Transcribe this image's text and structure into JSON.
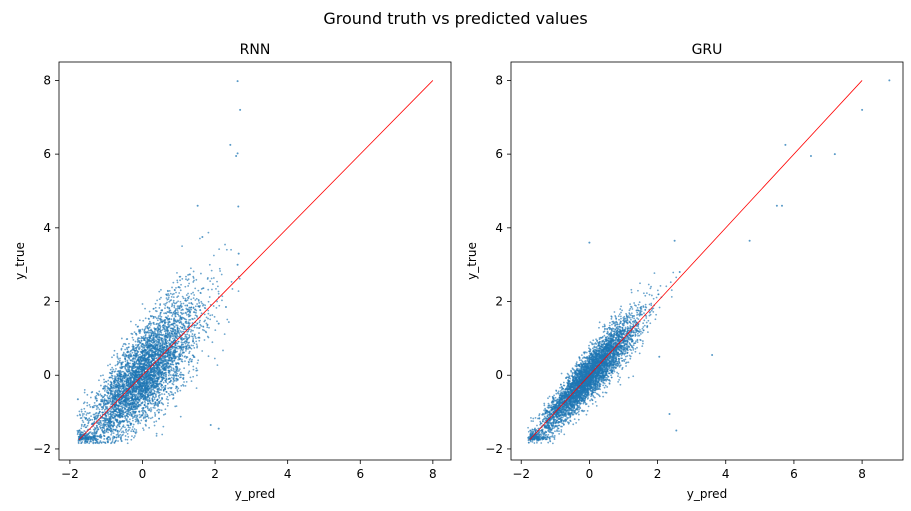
{
  "figure": {
    "suptitle": "Ground truth vs predicted values"
  },
  "colors": {
    "points": "#1f77b4",
    "reference_line": "#ff0000",
    "axes": "#000000",
    "background": "#ffffff"
  },
  "chart_data": [
    {
      "type": "scatter",
      "title": "RNN",
      "xlabel": "y_pred",
      "ylabel": "y_true",
      "xlim": [
        -2.3,
        8.5
      ],
      "ylim": [
        -2.3,
        8.5
      ],
      "x_ticks": [
        -2,
        0,
        2,
        4,
        6,
        8
      ],
      "y_ticks": [
        -2,
        0,
        2,
        4,
        6,
        8
      ],
      "grid": false,
      "reference_line": {
        "from": [
          -1.75,
          -1.75
        ],
        "to": [
          8.0,
          8.0
        ]
      },
      "cluster": {
        "point_count": 5000,
        "low_end": [
          -1.75,
          -1.75
        ],
        "center": [
          0.05,
          0.0
        ],
        "pred_sd": 0.75,
        "true_sd_at_center": 1.0
      },
      "outliers": [
        {
          "x": 2.62,
          "y": 7.98
        },
        {
          "x": 2.69,
          "y": 7.2
        },
        {
          "x": 2.42,
          "y": 6.25
        },
        {
          "x": 2.58,
          "y": 5.95
        },
        {
          "x": 2.62,
          "y": 6.02
        },
        {
          "x": 2.64,
          "y": 4.58
        },
        {
          "x": 1.52,
          "y": 4.6
        },
        {
          "x": 1.65,
          "y": 3.75
        },
        {
          "x": 2.65,
          "y": 3.3
        },
        {
          "x": 2.62,
          "y": 3.0
        },
        {
          "x": 2.1,
          "y": 1.4
        },
        {
          "x": 2.3,
          "y": 1.85
        },
        {
          "x": -1.78,
          "y": -0.65
        },
        {
          "x": 2.1,
          "y": -1.45
        },
        {
          "x": 1.88,
          "y": -1.35
        }
      ]
    },
    {
      "type": "scatter",
      "title": "GRU",
      "xlabel": "y_pred",
      "ylabel": "y_true",
      "xlim": [
        -2.3,
        9.2
      ],
      "ylim": [
        -2.3,
        8.5
      ],
      "x_ticks": [
        -2,
        0,
        2,
        4,
        6,
        8
      ],
      "y_ticks": [
        -2,
        0,
        2,
        4,
        6,
        8
      ],
      "grid": false,
      "reference_line": {
        "from": [
          -1.75,
          -1.75
        ],
        "to": [
          8.0,
          8.0
        ]
      },
      "cluster": {
        "point_count": 5000,
        "low_end": [
          -1.75,
          -1.75
        ],
        "center": [
          0.0,
          0.0
        ],
        "pred_sd": 0.7,
        "true_sd_at_center": 0.55
      },
      "outliers": [
        {
          "x": 8.8,
          "y": 8.0
        },
        {
          "x": 8.0,
          "y": 7.2
        },
        {
          "x": 5.75,
          "y": 6.25
        },
        {
          "x": 6.5,
          "y": 5.95
        },
        {
          "x": 7.2,
          "y": 6.0
        },
        {
          "x": 5.5,
          "y": 4.6
        },
        {
          "x": 5.65,
          "y": 4.6
        },
        {
          "x": 4.7,
          "y": 3.65
        },
        {
          "x": 3.6,
          "y": 0.55
        },
        {
          "x": 2.5,
          "y": 3.65
        },
        {
          "x": 2.65,
          "y": 2.8
        },
        {
          "x": 2.55,
          "y": -1.5
        },
        {
          "x": 2.35,
          "y": -1.05
        },
        {
          "x": 0.0,
          "y": 3.6
        },
        {
          "x": 2.05,
          "y": 0.5
        }
      ]
    }
  ]
}
